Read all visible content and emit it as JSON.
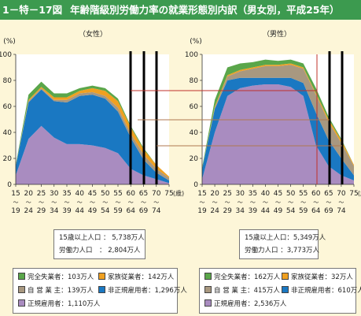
{
  "figure": {
    "number": "1－特－17図",
    "title": "年齢階級別労働力率の就業形態別内訳（男女別，平成25年）"
  },
  "chart_data": [
    {
      "type": "area",
      "panel": "female",
      "title": "（女性）",
      "ylabel": "(%)",
      "xlabel": "(歳)",
      "ylim": [
        0,
        100
      ],
      "yticks": [
        0,
        20,
        40,
        60,
        80,
        100
      ],
      "categories": [
        [
          "15",
          "19"
        ],
        [
          "20",
          "24"
        ],
        [
          "25",
          "29"
        ],
        [
          "30",
          "34"
        ],
        [
          "35",
          "39"
        ],
        [
          "40",
          "44"
        ],
        [
          "45",
          "49"
        ],
        [
          "50",
          "54"
        ],
        [
          "55",
          "59"
        ],
        [
          "60",
          "64"
        ],
        [
          "65",
          "69"
        ],
        [
          "70",
          "74"
        ],
        [
          "75",
          ""
        ]
      ],
      "stacked": true,
      "series": [
        {
          "key": "regular",
          "name": "正規雇用者",
          "color": "#a98cc0",
          "values": [
            7,
            35,
            45,
            36,
            31,
            31,
            30,
            28,
            24,
            12,
            7,
            4,
            1
          ]
        },
        {
          "key": "nonregular",
          "name": "非正規雇用者",
          "color": "#1a78c2",
          "values": [
            7,
            28,
            28,
            28,
            32,
            37,
            39,
            38,
            32,
            24,
            12,
            5,
            2
          ]
        },
        {
          "key": "self_employed",
          "name": "自 営 業 主",
          "color": "#a89880",
          "values": [
            0,
            1,
            1,
            1,
            2,
            2,
            2,
            2,
            3,
            3,
            4,
            3,
            2
          ]
        },
        {
          "key": "family_worker",
          "name": "家族従業者",
          "color": "#f0a020",
          "values": [
            0,
            1,
            1,
            2,
            2,
            2,
            3,
            4,
            5,
            5,
            4,
            3,
            1
          ]
        },
        {
          "key": "unemployed",
          "name": "完全失業者",
          "color": "#5aa64a",
          "values": [
            1,
            4,
            4,
            3,
            3,
            2,
            2,
            2,
            2,
            1,
            1,
            0,
            0
          ]
        }
      ],
      "markers": [
        "60～64",
        "65～69",
        "70～74"
      ],
      "summary": [
        {
          "label": "15歳以上人口",
          "value": "5,738万人"
        },
        {
          "label": "労働力人口",
          "value": "2,804万人"
        }
      ],
      "legend": [
        {
          "key": "unemployed",
          "text": "完全失業者：103万人"
        },
        {
          "key": "family_worker",
          "text": "家族従業者：142万人"
        },
        {
          "key": "self_employed",
          "text": "自 営 業 主：139万人"
        },
        {
          "key": "nonregular",
          "text": "非正規雇用者：1,296万人"
        },
        {
          "key": "regular",
          "text": "正規雇用者：1,110万人"
        }
      ]
    },
    {
      "type": "area",
      "panel": "male",
      "title": "（男性）",
      "ylabel": "(%)",
      "xlabel": "(歳)",
      "ylim": [
        0,
        100
      ],
      "yticks": [
        0,
        20,
        40,
        60,
        80,
        100
      ],
      "categories": [
        [
          "15",
          "19"
        ],
        [
          "20",
          "24"
        ],
        [
          "25",
          "29"
        ],
        [
          "30",
          "34"
        ],
        [
          "35",
          "39"
        ],
        [
          "40",
          "44"
        ],
        [
          "45",
          "49"
        ],
        [
          "50",
          "54"
        ],
        [
          "55",
          "59"
        ],
        [
          "60",
          "64"
        ],
        [
          "65",
          "69"
        ],
        [
          "70",
          "74"
        ],
        [
          "75",
          ""
        ]
      ],
      "stacked": true,
      "series": [
        {
          "key": "regular",
          "name": "正規雇用者",
          "color": "#a98cc0",
          "values": [
            4,
            40,
            68,
            74,
            76,
            77,
            77,
            75,
            68,
            30,
            14,
            7,
            3
          ]
        },
        {
          "key": "nonregular",
          "name": "非正規雇用者",
          "color": "#1a78c2",
          "values": [
            8,
            18,
            12,
            8,
            6,
            5,
            5,
            7,
            10,
            25,
            20,
            13,
            4
          ]
        },
        {
          "key": "self_employed",
          "name": "自 営 業 主",
          "color": "#a89880",
          "values": [
            0,
            1,
            3,
            5,
            7,
            9,
            9,
            10,
            11,
            14,
            14,
            12,
            7
          ]
        },
        {
          "key": "family_worker",
          "name": "家族従業者",
          "color": "#f0a020",
          "values": [
            0,
            1,
            1,
            1,
            1,
            1,
            1,
            1,
            1,
            1,
            2,
            2,
            1
          ]
        },
        {
          "key": "unemployed",
          "name": "完全失業者",
          "color": "#5aa64a",
          "values": [
            1,
            5,
            6,
            5,
            4,
            4,
            3,
            3,
            3,
            4,
            2,
            1,
            0
          ]
        }
      ],
      "markers": [
        "60～64",
        "65～69",
        "70～74"
      ],
      "summary": [
        {
          "label": "15歳以上人口",
          "value": "5,349万人"
        },
        {
          "label": "労働力人口",
          "value": "3,773万人"
        }
      ],
      "legend": [
        {
          "key": "unemployed",
          "text": "完全失業者：162万人"
        },
        {
          "key": "family_worker",
          "text": "家族従業者：32万人"
        },
        {
          "key": "self_employed",
          "text": "自 営 業 主：415万人"
        },
        {
          "key": "nonregular",
          "text": "非正規雇用者：610万人"
        },
        {
          "key": "regular",
          "text": "正規雇用者：2,536万人"
        }
      ]
    }
  ]
}
